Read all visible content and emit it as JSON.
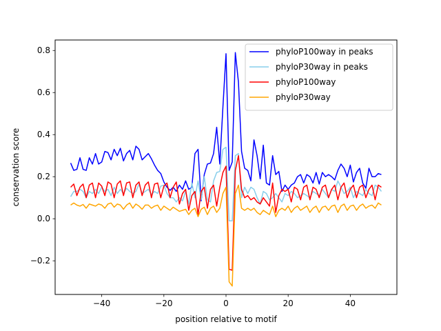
{
  "chart_data": {
    "type": "line",
    "title": "",
    "xlabel": "position relative to motif",
    "ylabel": "conservation score",
    "xlim": [
      -55,
      55
    ],
    "ylim": [
      -0.36,
      0.85
    ],
    "xticks": [
      -40,
      -20,
      0,
      20,
      40
    ],
    "xtick_labels": [
      "−40",
      "−20",
      "0",
      "20",
      "40"
    ],
    "yticks": [
      -0.2,
      0.0,
      0.2,
      0.4,
      0.6,
      0.8
    ],
    "ytick_labels": [
      "−0.2",
      "0.0",
      "0.2",
      "0.4",
      "0.6",
      "0.8"
    ],
    "grid": false,
    "legend_position": "top-right",
    "x_start": -50,
    "x_step": 1,
    "series": [
      {
        "name": "phyloP100way in peaks",
        "color": "#0000ff",
        "values": [
          0.265,
          0.23,
          0.235,
          0.29,
          0.235,
          0.23,
          0.29,
          0.26,
          0.31,
          0.26,
          0.27,
          0.32,
          0.315,
          0.28,
          0.33,
          0.3,
          0.335,
          0.275,
          0.31,
          0.325,
          0.28,
          0.345,
          0.33,
          0.28,
          0.295,
          0.31,
          0.285,
          0.255,
          0.23,
          0.215,
          0.175,
          0.15,
          0.135,
          0.15,
          0.13,
          0.16,
          0.14,
          0.18,
          0.14,
          0.15,
          0.31,
          0.33,
          0.085,
          0.21,
          0.26,
          0.265,
          0.31,
          0.435,
          0.26,
          0.53,
          0.785,
          0.23,
          0.27,
          0.79,
          0.65,
          0.32,
          0.24,
          0.23,
          0.18,
          0.375,
          0.3,
          0.19,
          0.35,
          0.17,
          0.16,
          0.3,
          0.21,
          0.225,
          0.13,
          0.16,
          0.14,
          0.16,
          0.17,
          0.2,
          0.21,
          0.17,
          0.21,
          0.2,
          0.17,
          0.22,
          0.165,
          0.22,
          0.2,
          0.21,
          0.2,
          0.185,
          0.23,
          0.26,
          0.24,
          0.2,
          0.255,
          0.175,
          0.22,
          0.24,
          0.17,
          0.145,
          0.24,
          0.2,
          0.2,
          0.215,
          0.21
        ]
      },
      {
        "name": "phyloP30way in peaks",
        "color": "#87ceeb",
        "values": [
          0.105,
          0.13,
          0.13,
          0.14,
          0.13,
          0.1,
          0.13,
          0.12,
          0.14,
          0.12,
          0.15,
          0.13,
          0.14,
          0.11,
          0.15,
          0.12,
          0.14,
          0.12,
          0.145,
          0.13,
          0.12,
          0.13,
          0.165,
          0.12,
          0.13,
          0.14,
          0.115,
          0.13,
          0.12,
          0.155,
          0.16,
          0.12,
          0.1,
          0.1,
          0.08,
          0.1,
          0.085,
          0.13,
          0.07,
          0.17,
          0.1,
          0.18,
          0.09,
          0.2,
          0.09,
          0.08,
          0.18,
          0.22,
          0.225,
          0.33,
          0.34,
          -0.01,
          -0.01,
          0.3,
          0.31,
          0.1,
          0.15,
          0.12,
          0.15,
          0.14,
          0.1,
          0.07,
          0.13,
          0.12,
          0.09,
          0.1,
          0.12,
          0.1,
          0.08,
          0.12,
          0.11,
          0.13,
          0.12,
          0.1,
          0.11,
          0.12,
          0.11,
          0.1,
          0.13,
          0.12,
          0.11,
          0.14,
          0.12,
          0.1,
          0.14,
          0.13,
          0.18,
          0.15,
          0.12,
          0.13,
          0.15,
          0.1,
          0.13,
          0.12,
          0.11,
          0.14,
          0.12,
          0.11,
          0.16,
          0.15,
          0.13
        ]
      },
      {
        "name": "phyloP100way",
        "color": "#ff0000",
        "values": [
          0.15,
          0.165,
          0.11,
          0.15,
          0.165,
          0.1,
          0.16,
          0.17,
          0.1,
          0.17,
          0.155,
          0.11,
          0.175,
          0.165,
          0.1,
          0.165,
          0.18,
          0.11,
          0.17,
          0.175,
          0.1,
          0.16,
          0.175,
          0.11,
          0.16,
          0.175,
          0.1,
          0.165,
          0.17,
          0.1,
          0.155,
          0.17,
          0.1,
          0.15,
          0.175,
          0.07,
          0.12,
          0.14,
          0.04,
          0.11,
          0.13,
          0.02,
          0.13,
          0.15,
          0.05,
          0.14,
          0.16,
          0.06,
          0.15,
          0.22,
          0.25,
          -0.24,
          -0.245,
          0.23,
          0.3,
          0.14,
          0.1,
          0.11,
          0.09,
          0.1,
          0.08,
          0.07,
          0.1,
          0.08,
          0.06,
          0.17,
          0.03,
          0.11,
          0.14,
          0.13,
          0.14,
          0.08,
          0.15,
          0.14,
          0.09,
          0.15,
          0.16,
          0.09,
          0.15,
          0.14,
          0.1,
          0.15,
          0.16,
          0.1,
          0.14,
          0.16,
          0.09,
          0.15,
          0.17,
          0.1,
          0.14,
          0.16,
          0.1,
          0.15,
          0.16,
          0.1,
          0.14,
          0.16,
          0.09,
          0.16,
          0.15
        ]
      },
      {
        "name": "phyloP30way",
        "color": "#ffa500",
        "values": [
          0.065,
          0.075,
          0.065,
          0.06,
          0.068,
          0.05,
          0.07,
          0.065,
          0.06,
          0.07,
          0.065,
          0.05,
          0.07,
          0.075,
          0.055,
          0.07,
          0.065,
          0.045,
          0.065,
          0.075,
          0.05,
          0.07,
          0.06,
          0.045,
          0.065,
          0.065,
          0.05,
          0.06,
          0.065,
          0.04,
          0.06,
          0.05,
          0.04,
          0.055,
          0.045,
          0.035,
          0.04,
          0.045,
          0.02,
          0.04,
          0.05,
          0.01,
          0.045,
          0.055,
          0.02,
          0.05,
          0.06,
          0.03,
          0.05,
          0.12,
          0.15,
          -0.3,
          -0.32,
          0.12,
          0.16,
          0.05,
          0.04,
          0.05,
          0.04,
          0.05,
          0.03,
          0.02,
          0.04,
          0.03,
          0.02,
          0.06,
          0.01,
          0.04,
          0.05,
          0.04,
          0.06,
          0.03,
          0.05,
          0.06,
          0.04,
          0.05,
          0.06,
          0.03,
          0.05,
          0.06,
          0.03,
          0.055,
          0.06,
          0.04,
          0.06,
          0.065,
          0.03,
          0.06,
          0.07,
          0.04,
          0.06,
          0.065,
          0.04,
          0.06,
          0.07,
          0.05,
          0.06,
          0.065,
          0.05,
          0.075,
          0.065
        ]
      }
    ]
  }
}
